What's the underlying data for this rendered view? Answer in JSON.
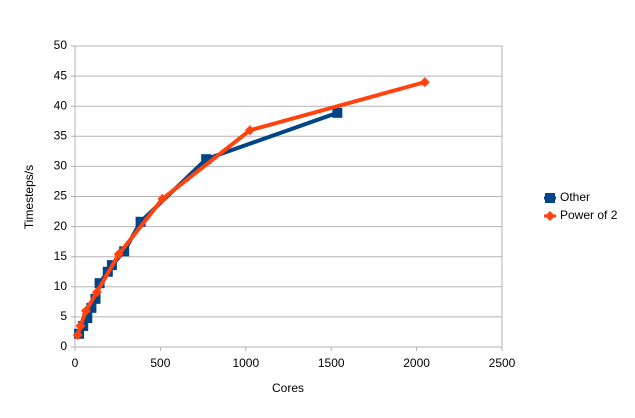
{
  "chart_data": {
    "type": "line",
    "x_label": "Cores",
    "y_label": "Timesteps/s",
    "xlim": [
      0,
      2500
    ],
    "xticks": [
      0,
      500,
      1000,
      1500,
      2000,
      2500
    ],
    "ylim": [
      0,
      50
    ],
    "yticks": [
      0,
      5,
      10,
      15,
      20,
      25,
      30,
      35,
      40,
      45,
      50
    ],
    "grid": true,
    "legend": "right",
    "series": [
      {
        "name": "Other",
        "color": "#004586",
        "marker": "square",
        "x": [
          24,
          48,
          72,
          96,
          120,
          144,
          192,
          216,
          288,
          384,
          768,
          1536
        ],
        "values": [
          2.2,
          3.5,
          4.8,
          6.5,
          8.0,
          10.6,
          12.5,
          13.6,
          15.9,
          20.8,
          31.2,
          38.9
        ]
      },
      {
        "name": "Power of 2",
        "color": "#ff420e",
        "marker": "diamond",
        "x": [
          16,
          32,
          64,
          128,
          256,
          512,
          1024,
          2048
        ],
        "values": [
          2.0,
          3.5,
          6.0,
          9.1,
          15.4,
          24.6,
          36.0,
          44.0
        ]
      }
    ]
  }
}
